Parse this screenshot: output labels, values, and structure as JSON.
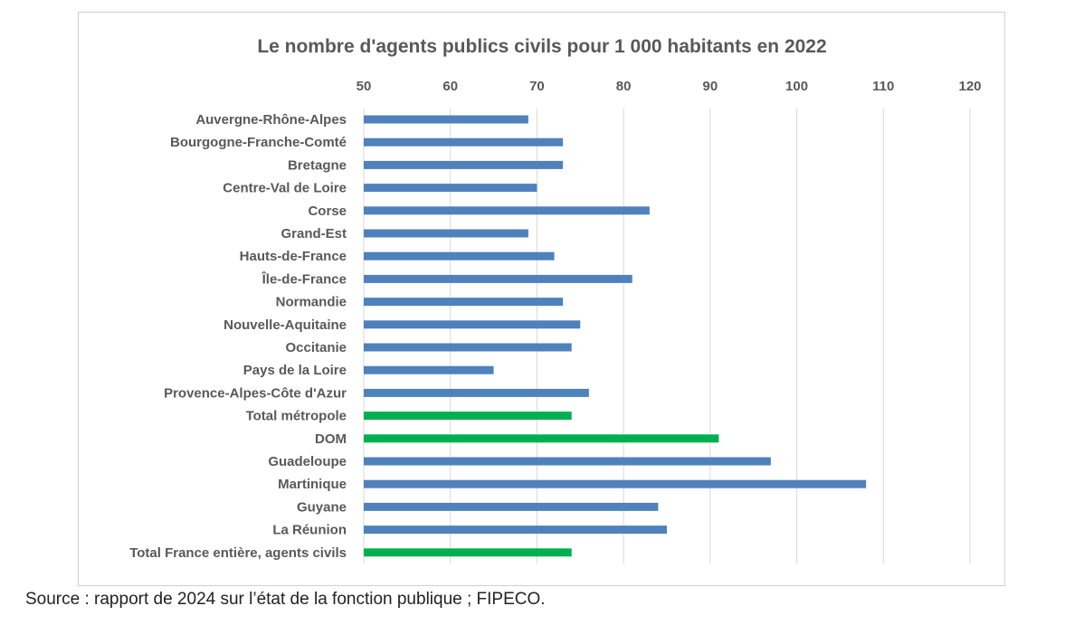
{
  "chart_data": {
    "type": "bar",
    "orientation": "horizontal",
    "title": "Le nombre d'agents publics civils pour 1 000 habitants en 2022",
    "xlabel": "",
    "ylabel": "",
    "xlim": [
      50,
      120
    ],
    "xticks": [
      "50",
      "60",
      "70",
      "80",
      "90",
      "100",
      "110",
      "120"
    ],
    "x_axis_position": "top",
    "grid": "vertical",
    "legend": "none",
    "categories": [
      "Auvergne-Rhône-Alpes",
      "Bourgogne-Franche-Comté",
      "Bretagne",
      "Centre-Val de Loire",
      "Corse",
      "Grand-Est",
      "Hauts-de-France",
      "Île-de-France",
      "Normandie",
      "Nouvelle-Aquitaine",
      "Occitanie",
      "Pays de la Loire",
      "Provence-Alpes-Côte d'Azur",
      "Total métropole",
      "DOM",
      "Guadeloupe",
      "Martinique",
      "Guyane",
      "La Réunion",
      "Total France entière, agents civils"
    ],
    "values": [
      69,
      73,
      73,
      70,
      83,
      69,
      72,
      81,
      73,
      75,
      74,
      65,
      76,
      74,
      91,
      97,
      108,
      84,
      85,
      74
    ],
    "highlighted": [
      false,
      false,
      false,
      false,
      false,
      false,
      false,
      false,
      false,
      false,
      false,
      false,
      false,
      true,
      true,
      false,
      false,
      false,
      false,
      true
    ],
    "colors": {
      "default": "#4f81bd",
      "highlight": "#00b050",
      "grid": "#d9d9d9",
      "text": "#595959"
    }
  },
  "source": "Source : rapport de 2024 sur l’état de la fonction publique ; FIPECO."
}
